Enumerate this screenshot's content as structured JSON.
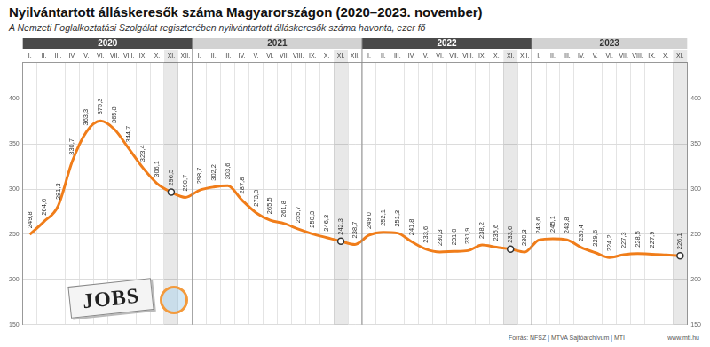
{
  "chart_data": {
    "type": "line",
    "title": "Nyilvántartott álláskeresők száma Magyarországon (2020–2023. november)",
    "subtitle": "A Nemzeti Foglalkoztatási Szolgálat regiszterében nyilvántartott álláskeresők száma havonta, ezer fő",
    "source": "Forrás: NFSZ | MTVA Sajtóarchívum | MTI",
    "annotations": [
      "www.mti.hu",
      "JOBS"
    ],
    "years": [
      "2020",
      "2021",
      "2022",
      "2023"
    ],
    "categories": [
      "I.",
      "II.",
      "III.",
      "IV.",
      "V.",
      "VI.",
      "VII.",
      "VIII.",
      "IX.",
      "X.",
      "XI.",
      "XII.",
      "I.",
      "II.",
      "III.",
      "IV.",
      "V.",
      "VI.",
      "VII.",
      "VIII.",
      "IX.",
      "X.",
      "XI.",
      "XII.",
      "I.",
      "II.",
      "III.",
      "IV.",
      "V.",
      "VI.",
      "VII.",
      "VIII.",
      "IX.",
      "X.",
      "XI.",
      "XII.",
      "I.",
      "II.",
      "III.",
      "IV.",
      "V.",
      "VI.",
      "VII.",
      "VIII.",
      "IX.",
      "X.",
      "XI."
    ],
    "values": [
      249.8,
      264.0,
      281.3,
      330.7,
      363.3,
      375.3,
      365.8,
      344.7,
      323.4,
      306.1,
      296.5,
      290.7,
      298.7,
      302.2,
      303.6,
      287.8,
      273.8,
      265.5,
      261.8,
      255.7,
      250.3,
      246.3,
      242.3,
      238.7,
      249.0,
      252.1,
      251.3,
      241.8,
      233.6,
      230.3,
      231.0,
      231.9,
      238.2,
      235.6,
      233.6,
      230.3,
      243.6,
      245.1,
      243.8,
      235.4,
      229.6,
      224.2,
      227.3,
      228.5,
      227.9,
      227.0,
      226.1
    ],
    "value_labels": [
      "249,8",
      "264,0",
      "281,3",
      "330,7",
      "363,3",
      "375,3",
      "365,8",
      "344,7",
      "323,4",
      "306,1",
      "296,5",
      "290,7",
      "298,7",
      "302,2",
      "303,6",
      "287,8",
      "273,8",
      "265,5",
      "261,8",
      "255,7",
      "250,3",
      "246,3",
      "242,3",
      "238,7",
      "249,0",
      "252,1",
      "251,3",
      "241,8",
      "233,6",
      "230,3",
      "231,0",
      "231,9",
      "238,2",
      "235,6",
      "233,6",
      "230,3",
      "243,6",
      "245,1",
      "243,8",
      "235,4",
      "229,6",
      "224,2",
      "227,3",
      "228,5",
      "227,9",
      null,
      "226,1"
    ],
    "color": "#f07d1a",
    "marker": "circle",
    "ylim": [
      150,
      440
    ],
    "yticks": [
      150,
      200,
      250,
      300,
      350,
      400
    ],
    "grid": true,
    "data_labels": true
  }
}
